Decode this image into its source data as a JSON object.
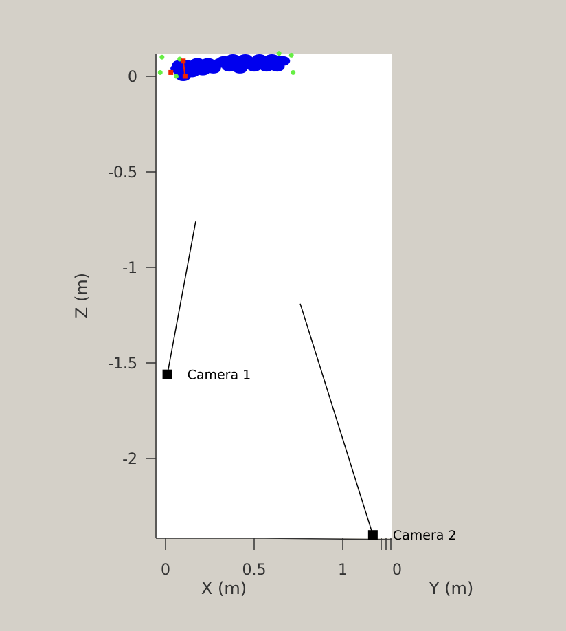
{
  "colors": {
    "background": "#d4d0c8",
    "plot_area": "#ffffff",
    "points": "#0000ee",
    "marker_green": "#66ee44",
    "marker_red": "#ee2200",
    "camera": "#000000"
  },
  "chart_data": {
    "type": "scatter",
    "projection": "3D, viewed looking along Y",
    "xlabel": "X (m)",
    "ylabel": "Y (m)",
    "zlabel": "Z (m)",
    "xlim": [
      -0.05,
      1.28
    ],
    "zlim": [
      -2.42,
      0.12
    ],
    "x_ticks": [
      0,
      0.5,
      1
    ],
    "x_tick_labels": [
      "0",
      "0.5",
      "1"
    ],
    "y_ticks": [
      0
    ],
    "y_tick_labels": [
      "0"
    ],
    "z_ticks": [
      0,
      -0.5,
      -1,
      -1.5,
      -2
    ],
    "z_tick_labels": [
      "0",
      "-0.5",
      "-1",
      "-1.5",
      "-2"
    ],
    "grid": false,
    "cameras": [
      {
        "label": "Camera 1",
        "x": 0.01,
        "z": -1.56,
        "dir_x": 0.17,
        "dir_z": -0.76
      },
      {
        "label": "Camera 2",
        "x": 1.17,
        "z": -2.4,
        "dir_x": 0.76,
        "dir_z": -1.19
      }
    ],
    "point_cloud": [
      {
        "x": 0.07,
        "z": 0.04
      },
      {
        "x": 0.09,
        "z": 0.02
      },
      {
        "x": 0.11,
        "z": 0.03
      },
      {
        "x": 0.13,
        "z": 0.04
      },
      {
        "x": 0.16,
        "z": 0.05
      },
      {
        "x": 0.19,
        "z": 0.05
      },
      {
        "x": 0.22,
        "z": 0.06
      },
      {
        "x": 0.25,
        "z": 0.06
      },
      {
        "x": 0.28,
        "z": 0.06
      },
      {
        "x": 0.31,
        "z": 0.07
      },
      {
        "x": 0.34,
        "z": 0.07
      },
      {
        "x": 0.37,
        "z": 0.07
      },
      {
        "x": 0.4,
        "z": 0.06
      },
      {
        "x": 0.43,
        "z": 0.06
      },
      {
        "x": 0.46,
        "z": 0.07
      },
      {
        "x": 0.49,
        "z": 0.07
      },
      {
        "x": 0.52,
        "z": 0.07
      },
      {
        "x": 0.55,
        "z": 0.07
      },
      {
        "x": 0.58,
        "z": 0.07
      },
      {
        "x": 0.61,
        "z": 0.07
      },
      {
        "x": 0.64,
        "z": 0.08
      },
      {
        "x": 0.66,
        "z": 0.08
      },
      {
        "x": 0.08,
        "z": 0.06
      },
      {
        "x": 0.12,
        "z": 0.06
      },
      {
        "x": 0.18,
        "z": 0.07
      },
      {
        "x": 0.24,
        "z": 0.07
      },
      {
        "x": 0.33,
        "z": 0.08
      },
      {
        "x": 0.38,
        "z": 0.09
      },
      {
        "x": 0.45,
        "z": 0.09
      },
      {
        "x": 0.53,
        "z": 0.09
      },
      {
        "x": 0.6,
        "z": 0.09
      },
      {
        "x": 0.1,
        "z": 0.0
      },
      {
        "x": 0.15,
        "z": 0.02
      },
      {
        "x": 0.21,
        "z": 0.03
      },
      {
        "x": 0.27,
        "z": 0.04
      },
      {
        "x": 0.36,
        "z": 0.05
      },
      {
        "x": 0.42,
        "z": 0.04
      },
      {
        "x": 0.5,
        "z": 0.05
      },
      {
        "x": 0.57,
        "z": 0.05
      },
      {
        "x": 0.63,
        "z": 0.05
      }
    ],
    "green_markers": [
      {
        "x": -0.02,
        "z": 0.1
      },
      {
        "x": 0.08,
        "z": 0.09
      },
      {
        "x": 0.64,
        "z": 0.12
      },
      {
        "x": 0.71,
        "z": 0.11
      },
      {
        "x": -0.03,
        "z": 0.02
      },
      {
        "x": 0.06,
        "z": 0.0
      },
      {
        "x": 0.72,
        "z": 0.02
      }
    ],
    "red_markers": [
      {
        "x": 0.03,
        "z": 0.02
      },
      {
        "x": 0.1,
        "z": 0.08
      },
      {
        "x": 0.11,
        "z": 0.0
      }
    ]
  }
}
